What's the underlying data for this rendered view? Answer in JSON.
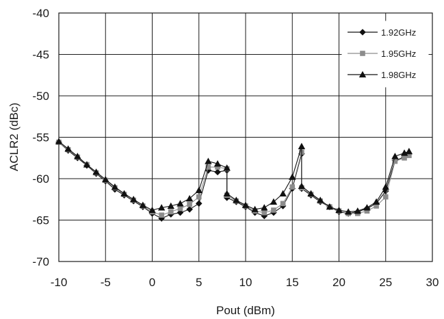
{
  "chart_data": {
    "type": "line",
    "xlabel": "Pout (dBm)",
    "ylabel": "ACLR2 (dBc)",
    "xlim": [
      -10,
      30
    ],
    "ylim": [
      -70,
      -40
    ],
    "x_ticks": [
      "-10",
      "-5",
      "0",
      "5",
      "10",
      "15",
      "20",
      "25",
      "30"
    ],
    "y_ticks": [
      "-40",
      "-45",
      "-50",
      "-55",
      "-60",
      "-65",
      "-70"
    ],
    "grid": true,
    "legend_position": "top-right",
    "series": [
      {
        "name": "1.92GHz",
        "marker": "diamond",
        "color": "#111111",
        "points": [
          [
            -10,
            -55.6
          ],
          [
            -9,
            -56.6
          ],
          [
            -8,
            -57.5
          ],
          [
            -7,
            -58.4
          ],
          [
            -6,
            -59.4
          ],
          [
            -5,
            -60.3
          ],
          [
            -4,
            -61.3
          ],
          [
            -3,
            -62.0
          ],
          [
            -2,
            -62.7
          ],
          [
            -1,
            -63.4
          ],
          [
            0,
            -64.2
          ],
          [
            1,
            -64.8
          ],
          [
            2,
            -64.3
          ],
          [
            3,
            -64.1
          ],
          [
            4,
            -63.7
          ],
          [
            5,
            -63.0
          ],
          [
            6,
            -59.0
          ],
          [
            7,
            -59.2
          ],
          [
            8,
            -59.0
          ],
          [
            8,
            -62.3
          ],
          [
            9,
            -62.8
          ],
          [
            10,
            -63.4
          ],
          [
            11,
            -64.1
          ],
          [
            12,
            -64.5
          ],
          [
            13,
            -64.1
          ],
          [
            14,
            -63.3
          ],
          [
            15,
            -61.2
          ],
          [
            16,
            -57.0
          ],
          [
            16,
            -61.2
          ],
          [
            17,
            -62.0
          ],
          [
            18,
            -62.8
          ],
          [
            19,
            -63.4
          ],
          [
            20,
            -64.0
          ],
          [
            21,
            -64.2
          ],
          [
            22,
            -64.0
          ],
          [
            23,
            -63.6
          ],
          [
            24,
            -63.0
          ],
          [
            25,
            -61.5
          ],
          [
            26,
            -57.8
          ],
          [
            27,
            -57.4
          ],
          [
            27.5,
            -57.0
          ]
        ]
      },
      {
        "name": "1.95GHz",
        "marker": "square",
        "color": "#8c8c8c",
        "points": [
          [
            -10,
            -55.6
          ],
          [
            -9,
            -56.5
          ],
          [
            -8,
            -57.4
          ],
          [
            -7,
            -58.3
          ],
          [
            -6,
            -59.3
          ],
          [
            -5,
            -60.2
          ],
          [
            -4,
            -61.1
          ],
          [
            -3,
            -61.9
          ],
          [
            -2,
            -62.6
          ],
          [
            -1,
            -63.3
          ],
          [
            0,
            -64.0
          ],
          [
            1,
            -64.4
          ],
          [
            2,
            -64.0
          ],
          [
            3,
            -63.6
          ],
          [
            4,
            -63.1
          ],
          [
            5,
            -62.2
          ],
          [
            6,
            -58.6
          ],
          [
            7,
            -58.6
          ],
          [
            8,
            -58.8
          ],
          [
            8,
            -62.0
          ],
          [
            9,
            -62.7
          ],
          [
            10,
            -63.3
          ],
          [
            11,
            -63.9
          ],
          [
            12,
            -64.1
          ],
          [
            13,
            -63.8
          ],
          [
            14,
            -63.0
          ],
          [
            15,
            -61.0
          ],
          [
            16,
            -56.8
          ],
          [
            16,
            -61.1
          ],
          [
            17,
            -61.9
          ],
          [
            18,
            -62.7
          ],
          [
            19,
            -63.4
          ],
          [
            20,
            -63.9
          ],
          [
            21,
            -64.2
          ],
          [
            22,
            -64.2
          ],
          [
            23,
            -63.9
          ],
          [
            24,
            -63.3
          ],
          [
            25,
            -62.2
          ],
          [
            26,
            -57.9
          ],
          [
            27,
            -57.5
          ],
          [
            27.5,
            -57.2
          ]
        ]
      },
      {
        "name": "1.98GHz",
        "marker": "triangle",
        "color": "#111111",
        "points": [
          [
            -10,
            -55.5
          ],
          [
            -9,
            -56.4
          ],
          [
            -8,
            -57.3
          ],
          [
            -7,
            -58.3
          ],
          [
            -6,
            -59.2
          ],
          [
            -5,
            -60.1
          ],
          [
            -4,
            -61.0
          ],
          [
            -3,
            -61.8
          ],
          [
            -2,
            -62.5
          ],
          [
            -1,
            -63.2
          ],
          [
            0,
            -63.8
          ],
          [
            1,
            -63.5
          ],
          [
            2,
            -63.3
          ],
          [
            3,
            -63.0
          ],
          [
            4,
            -62.4
          ],
          [
            5,
            -61.4
          ],
          [
            6,
            -57.9
          ],
          [
            7,
            -58.2
          ],
          [
            8,
            -58.7
          ],
          [
            8,
            -61.8
          ],
          [
            9,
            -62.6
          ],
          [
            10,
            -63.2
          ],
          [
            11,
            -63.7
          ],
          [
            12,
            -63.5
          ],
          [
            13,
            -62.8
          ],
          [
            14,
            -61.8
          ],
          [
            15,
            -59.8
          ],
          [
            16,
            -56.1
          ],
          [
            16,
            -60.9
          ],
          [
            17,
            -61.8
          ],
          [
            18,
            -62.6
          ],
          [
            19,
            -63.4
          ],
          [
            20,
            -63.8
          ],
          [
            21,
            -64.0
          ],
          [
            22,
            -63.9
          ],
          [
            23,
            -63.5
          ],
          [
            24,
            -62.8
          ],
          [
            25,
            -61.0
          ],
          [
            26,
            -57.3
          ],
          [
            27,
            -56.9
          ],
          [
            27.5,
            -56.7
          ]
        ]
      }
    ]
  }
}
